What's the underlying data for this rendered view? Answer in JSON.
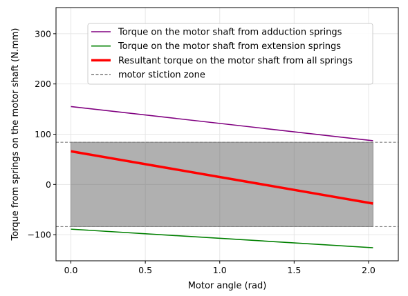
{
  "chart_data": {
    "type": "line",
    "title": "",
    "xlabel": "Motor angle (rad)",
    "ylabel": "Torque from springs on the motor shaft (N.mm)",
    "xlim": [
      -0.1,
      2.2
    ],
    "ylim": [
      -152,
      352
    ],
    "grid": true,
    "legend_position": "top-center",
    "x_ticks": [
      0.0,
      0.5,
      1.0,
      1.5,
      2.0
    ],
    "x_tick_labels": [
      "0.0",
      "0.5",
      "1.0",
      "1.5",
      "2.0"
    ],
    "y_ticks": [
      -100,
      0,
      100,
      200,
      300
    ],
    "y_tick_labels": [
      "−100",
      "0",
      "100",
      "200",
      "300"
    ],
    "x": [
      0.0,
      2.03
    ],
    "series": [
      {
        "name": "Torque on the motor shaft from adduction springs",
        "values": [
          155,
          87
        ],
        "color": "#800080",
        "style": "solid",
        "width": "thin"
      },
      {
        "name": "Torque on the motor shaft from extension springs",
        "values": [
          -89,
          -126
        ],
        "color": "#008000",
        "style": "solid",
        "width": "thin"
      },
      {
        "name": "Resultant torque on the motor shaft from all springs",
        "values": [
          66,
          -38
        ],
        "color": "#ff0000",
        "style": "solid",
        "width": "thick"
      },
      {
        "name": "motor stiction zone",
        "values": [
          84,
          -84
        ],
        "color": "#808080",
        "style": "dashed",
        "width": "thin",
        "kind": "horizontal-band"
      }
    ],
    "stiction_band": {
      "y_min": -84,
      "y_max": 84,
      "x_min": 0.0,
      "x_max": 2.03,
      "fill_color": "#b0b0b0"
    }
  }
}
